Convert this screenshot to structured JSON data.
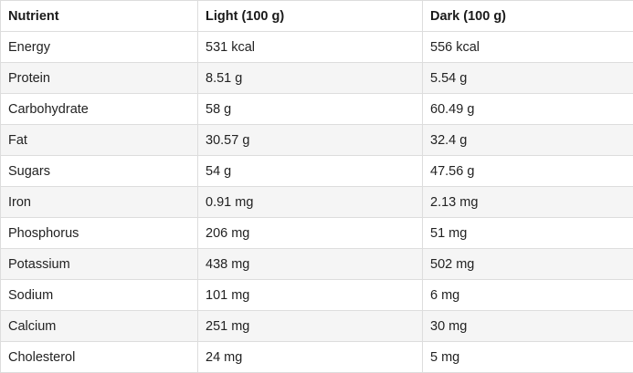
{
  "table": {
    "headers": [
      "Nutrient",
      "Light (100 g)",
      "Dark (100 g)"
    ],
    "rows": [
      [
        "Energy",
        "531 kcal",
        "556 kcal"
      ],
      [
        "Protein",
        "8.51 g",
        "5.54 g"
      ],
      [
        "Carbohydrate",
        "58 g",
        "60.49 g"
      ],
      [
        "Fat",
        "30.57 g",
        "32.4 g"
      ],
      [
        "Sugars",
        "54 g",
        "47.56 g"
      ],
      [
        "Iron",
        "0.91 mg",
        "2.13 mg"
      ],
      [
        "Phosphorus",
        "206 mg",
        "51 mg"
      ],
      [
        "Potassium",
        "438 mg",
        "502 mg"
      ],
      [
        "Sodium",
        "101 mg",
        "6 mg"
      ],
      [
        "Calcium",
        "251 mg",
        "30 mg"
      ],
      [
        "Cholesterol",
        "24 mg",
        "5 mg"
      ]
    ]
  }
}
